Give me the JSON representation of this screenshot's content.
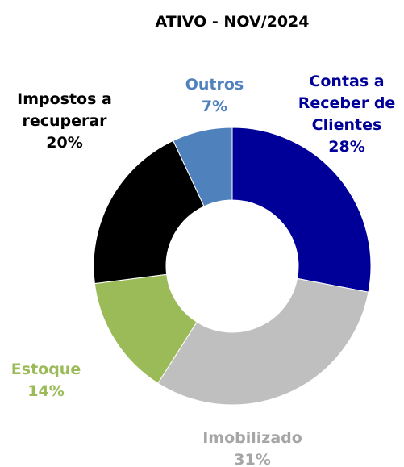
{
  "chart_data": {
    "type": "donut",
    "title": "ATIVO - NOV/2024",
    "categories": [
      "Contas a Receber de Clientes",
      "Imobilizado",
      "Estoque",
      "Impostos a recuperar",
      "Outros"
    ],
    "values": [
      28,
      31,
      14,
      20,
      7
    ],
    "value_labels": [
      "28%",
      "31%",
      "14%",
      "20%",
      "7%"
    ],
    "colors": [
      "#000099",
      "#BFBFBF",
      "#9BBB59",
      "#000000",
      "#4F81BD"
    ]
  }
}
